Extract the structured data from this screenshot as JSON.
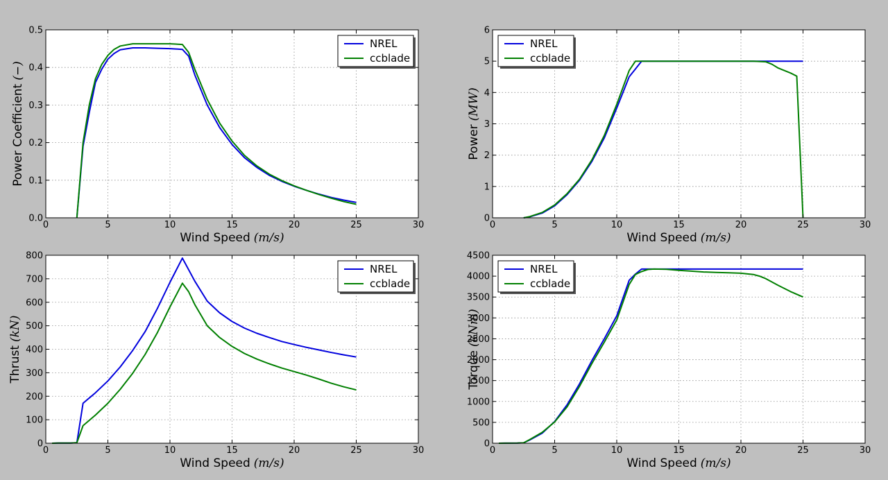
{
  "colors": {
    "background": "#bfbfbf",
    "plot_background": "#ffffff",
    "grid": "#8c8c8c",
    "NREL": "#0000dd",
    "ccblade": "#007f00"
  },
  "chart_data": [
    {
      "type": "line",
      "xlabel_text": "Wind Speed",
      "xlabel_unit": "(m/s)",
      "ylabel_text": "Power Coefficient",
      "ylabel_unit": "(−)",
      "xlim": [
        0,
        30
      ],
      "ylim": [
        0,
        0.5
      ],
      "xticks": [
        0,
        5,
        10,
        15,
        20,
        25,
        30
      ],
      "yticks": [
        0.0,
        0.1,
        0.2,
        0.3,
        0.4,
        0.5
      ],
      "ytick_labels": [
        "0.0",
        "0.1",
        "0.2",
        "0.3",
        "0.4",
        "0.5"
      ],
      "grid": true,
      "legend": "top-right",
      "series": [
        {
          "name": "NREL",
          "x": [
            2.5,
            3,
            3.5,
            4,
            4.5,
            5,
            5.5,
            6,
            7,
            8,
            9,
            10,
            11,
            11.5,
            12,
            13,
            14,
            15,
            16,
            17,
            18,
            19,
            20,
            21,
            22,
            23,
            24,
            25
          ],
          "y": [
            0,
            0.19,
            0.28,
            0.36,
            0.395,
            0.422,
            0.437,
            0.447,
            0.452,
            0.452,
            0.451,
            0.45,
            0.448,
            0.43,
            0.38,
            0.3,
            0.24,
            0.195,
            0.16,
            0.134,
            0.113,
            0.097,
            0.084,
            0.073,
            0.063,
            0.054,
            0.047,
            0.041
          ]
        },
        {
          "name": "ccblade",
          "x": [
            2.5,
            3,
            3.5,
            4,
            4.5,
            5,
            5.5,
            6,
            7,
            8,
            9,
            10,
            11,
            11.5,
            12,
            13,
            14,
            15,
            16,
            17,
            18,
            19,
            20,
            21,
            22,
            23,
            24,
            25
          ],
          "y": [
            0,
            0.2,
            0.3,
            0.37,
            0.408,
            0.432,
            0.448,
            0.457,
            0.463,
            0.463,
            0.463,
            0.463,
            0.461,
            0.44,
            0.395,
            0.315,
            0.252,
            0.204,
            0.166,
            0.138,
            0.116,
            0.099,
            0.085,
            0.073,
            0.062,
            0.052,
            0.043,
            0.036
          ]
        }
      ]
    },
    {
      "type": "line",
      "xlabel_text": "Wind Speed",
      "xlabel_unit": "(m/s)",
      "ylabel_text": "Power",
      "ylabel_unit": "(MW)",
      "xlim": [
        0,
        30
      ],
      "ylim": [
        0,
        6
      ],
      "xticks": [
        0,
        5,
        10,
        15,
        20,
        25,
        30
      ],
      "yticks": [
        0,
        1,
        2,
        3,
        4,
        5,
        6
      ],
      "ytick_labels": [
        "0",
        "1",
        "2",
        "3",
        "4",
        "5",
        "6"
      ],
      "grid": true,
      "legend": "top-left",
      "series": [
        {
          "name": "NREL",
          "x": [
            2.5,
            3,
            4,
            5,
            6,
            7,
            8,
            9,
            10,
            11,
            11.5,
            12,
            13,
            15,
            20,
            25
          ],
          "y": [
            0,
            0.03,
            0.15,
            0.38,
            0.74,
            1.2,
            1.8,
            2.55,
            3.5,
            4.5,
            4.75,
            5.0,
            5.0,
            5.0,
            5.0,
            5.0
          ]
        },
        {
          "name": "ccblade",
          "x": [
            2.5,
            3,
            4,
            5,
            6,
            7,
            8,
            9,
            10,
            11,
            11.5,
            12,
            13,
            15,
            20,
            21,
            22,
            22.5,
            23,
            24,
            24.5,
            25
          ],
          "y": [
            0,
            0.04,
            0.17,
            0.41,
            0.77,
            1.23,
            1.85,
            2.63,
            3.62,
            4.7,
            5.0,
            5.0,
            5.0,
            5.0,
            5.0,
            5.0,
            4.98,
            4.9,
            4.78,
            4.62,
            4.52,
            0
          ]
        }
      ]
    },
    {
      "type": "line",
      "xlabel_text": "Wind Speed",
      "xlabel_unit": "(m/s)",
      "ylabel_text": "Thrust",
      "ylabel_unit": "(kN)",
      "xlim": [
        0,
        30
      ],
      "ylim": [
        0,
        800
      ],
      "xticks": [
        0,
        5,
        10,
        15,
        20,
        25,
        30
      ],
      "yticks": [
        0,
        100,
        200,
        300,
        400,
        500,
        600,
        700,
        800
      ],
      "ytick_labels": [
        "0",
        "100",
        "200",
        "300",
        "400",
        "500",
        "600",
        "700",
        "800"
      ],
      "grid": true,
      "legend": "top-right",
      "series": [
        {
          "name": "NREL",
          "x": [
            0.5,
            1,
            2,
            2.5,
            3,
            4,
            5,
            6,
            7,
            8,
            9,
            10,
            11,
            12,
            13,
            14,
            15,
            16,
            17,
            18,
            19,
            20,
            21,
            22,
            23,
            24,
            25
          ],
          "y": [
            0,
            0.5,
            1,
            2,
            170,
            215,
            265,
            325,
            395,
            475,
            575,
            685,
            788,
            690,
            605,
            555,
            518,
            490,
            468,
            450,
            433,
            420,
            408,
            397,
            386,
            376,
            367
          ]
        },
        {
          "name": "ccblade",
          "x": [
            0.5,
            1,
            2,
            2.5,
            3,
            4,
            5,
            6,
            7,
            8,
            9,
            10,
            11,
            11.5,
            12,
            13,
            14,
            15,
            16,
            17,
            18,
            19,
            20,
            21,
            22,
            23,
            24,
            25
          ],
          "y": [
            0,
            0.5,
            1,
            2,
            75,
            120,
            170,
            230,
            298,
            378,
            472,
            580,
            681,
            645,
            590,
            500,
            450,
            412,
            382,
            358,
            338,
            320,
            305,
            290,
            273,
            255,
            240,
            227
          ]
        }
      ]
    },
    {
      "type": "line",
      "xlabel_text": "Wind Speed",
      "xlabel_unit": "(m/s)",
      "ylabel_text": "Torque",
      "ylabel_unit": "(kNm)",
      "xlim": [
        0,
        30
      ],
      "ylim": [
        0,
        4500
      ],
      "xticks": [
        0,
        5,
        10,
        15,
        20,
        25,
        30
      ],
      "yticks": [
        0,
        500,
        1000,
        1500,
        2000,
        2500,
        3000,
        3500,
        4000,
        4500
      ],
      "ytick_labels": [
        "0",
        "500",
        "1000",
        "1500",
        "2000",
        "2500",
        "3000",
        "3500",
        "4000",
        "4500"
      ],
      "grid": true,
      "legend": "top-left",
      "series": [
        {
          "name": "NREL",
          "x": [
            0.5,
            1,
            2,
            2.5,
            3,
            4,
            5,
            6,
            7,
            8,
            9,
            10,
            11,
            11.5,
            12,
            13,
            14,
            15,
            20,
            25
          ],
          "y": [
            0,
            2,
            5,
            10,
            80,
            240,
            520,
            920,
            1420,
            1980,
            2500,
            3050,
            3900,
            4050,
            4170,
            4170,
            4170,
            4170,
            4170,
            4170
          ]
        },
        {
          "name": "ccblade",
          "x": [
            0.5,
            1,
            2,
            2.5,
            3,
            4,
            5,
            6,
            7,
            8,
            9,
            10,
            11,
            11.5,
            12,
            12.5,
            13,
            14,
            15,
            16,
            17,
            18,
            19,
            20,
            21,
            21.5,
            22,
            23,
            24,
            25
          ],
          "y": [
            0,
            2,
            5,
            10,
            90,
            260,
            510,
            870,
            1360,
            1910,
            2420,
            2950,
            3800,
            4040,
            4110,
            4160,
            4170,
            4165,
            4140,
            4120,
            4100,
            4090,
            4080,
            4070,
            4040,
            4000,
            3940,
            3780,
            3630,
            3500
          ]
        }
      ]
    }
  ]
}
